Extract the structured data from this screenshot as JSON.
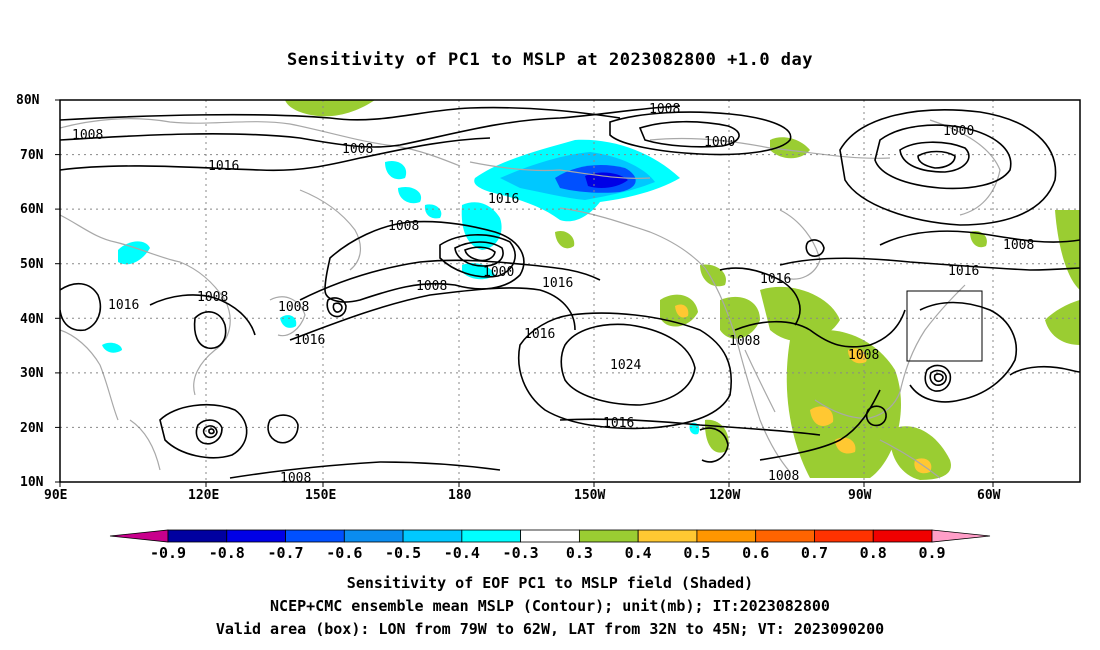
{
  "title": "Sensitivity of PC1 to MSLP at 2023082800 +1.0 day",
  "map": {
    "lon_labels": [
      "90E",
      "120E",
      "150E",
      "180",
      "150W",
      "120W",
      "90W",
      "60W"
    ],
    "lat_labels": [
      "80N",
      "70N",
      "60N",
      "50N",
      "40N",
      "30N",
      "20N",
      "10N"
    ],
    "contour_labels": [
      "1008",
      "1008",
      "1016",
      "1008",
      "1016",
      "1000",
      "1008",
      "1016",
      "1024",
      "1016",
      "1008",
      "1000",
      "1000",
      "1016",
      "1008",
      "1016",
      "1008",
      "1016",
      "1016",
      "1008",
      "1008",
      "1016",
      "1008",
      "1008"
    ],
    "valid_box": {
      "lon_from": "79W",
      "lon_to": "62W",
      "lat_from": "32N",
      "lat_to": "45N"
    }
  },
  "colorbar": {
    "labels": [
      "-0.9",
      "-0.8",
      "-0.7",
      "-0.6",
      "-0.5",
      "-0.4",
      "-0.3",
      "0.3",
      "0.4",
      "0.5",
      "0.6",
      "0.7",
      "0.8",
      "0.9"
    ],
    "colors": [
      "#c8008c",
      "#0000a0",
      "#0000e6",
      "#0050ff",
      "#0a8cf0",
      "#00c8ff",
      "#00ffff",
      "#ffffff",
      "#9acd32",
      "#ffc832",
      "#ff9600",
      "#ff6400",
      "#ff3200",
      "#f00000",
      "#ff9ec8"
    ]
  },
  "footer": {
    "line1": "Sensitivity of EOF PC1 to MSLP field (Shaded)",
    "line2": "NCEP+CMC ensemble mean MSLP (Contour); unit(mb); IT:2023082800",
    "line3": "Valid area (box): LON from 79W to 62W, LAT from 32N to 45N; VT: 2023090200"
  }
}
